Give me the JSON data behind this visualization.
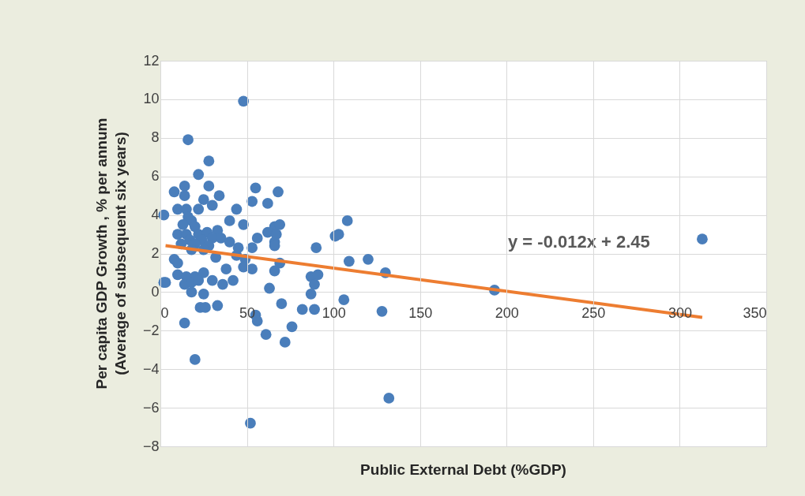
{
  "chart_data": {
    "type": "scatter",
    "xlabel": "Public External Debt (%GDP)",
    "ylabel": [
      "Per  capita GDP Growth , % per annum",
      "(Average of subsequent six years)"
    ],
    "xlim": [
      0,
      350
    ],
    "xticks": [
      0,
      50,
      100,
      150,
      200,
      250,
      300,
      350
    ],
    "ylim": [
      -8,
      12
    ],
    "yticks": [
      -8,
      -6,
      -4,
      -2,
      0,
      2,
      4,
      6,
      8,
      10,
      12
    ],
    "grid": true,
    "marker": "circle",
    "annotations": [
      "y = -0.012x + 2.45"
    ],
    "series": [
      {
        "color": "#4a7ebb",
        "x": [
          2,
          2,
          48,
          16,
          28,
          22,
          28,
          14,
          8,
          14,
          34,
          55,
          68,
          25,
          30,
          10,
          15,
          44,
          22,
          53,
          62,
          16,
          18,
          40,
          108,
          13,
          20,
          48,
          66,
          69,
          10,
          15,
          22,
          27,
          33,
          62,
          67,
          103,
          101,
          17,
          24,
          30,
          35,
          56,
          66,
          40,
          12,
          20,
          28,
          45,
          53,
          66,
          90,
          18,
          25,
          8,
          10,
          32,
          44,
          49,
          69,
          109,
          120,
          10,
          15,
          20,
          25,
          38,
          48,
          53,
          66,
          87,
          91,
          130,
          3,
          14,
          18,
          22,
          30,
          36,
          42,
          63,
          89,
          193,
          313,
          18,
          25,
          87,
          106,
          70,
          23,
          26,
          33,
          82,
          89,
          128,
          55,
          56,
          14,
          76,
          61,
          72,
          20,
          132,
          52
        ],
        "values": [
          4.0,
          0.5,
          9.9,
          7.9,
          6.8,
          6.1,
          5.5,
          5.5,
          5.2,
          5.0,
          5.0,
          5.4,
          5.2,
          4.8,
          4.5,
          4.3,
          4.3,
          4.3,
          4.3,
          4.7,
          4.6,
          3.9,
          3.7,
          3.7,
          3.7,
          3.5,
          3.4,
          3.5,
          3.4,
          3.5,
          3.0,
          3.0,
          3.0,
          3.1,
          3.2,
          3.1,
          3.0,
          3.0,
          2.9,
          2.7,
          2.7,
          2.8,
          2.8,
          2.8,
          2.6,
          2.6,
          2.5,
          2.5,
          2.4,
          2.3,
          2.3,
          2.4,
          2.3,
          2.2,
          2.2,
          1.7,
          1.5,
          1.8,
          1.9,
          1.7,
          1.5,
          1.6,
          1.7,
          0.9,
          0.8,
          0.8,
          1.0,
          1.2,
          1.3,
          1.2,
          1.1,
          0.8,
          0.9,
          1.0,
          0.5,
          0.4,
          0.5,
          0.6,
          0.6,
          0.4,
          0.6,
          0.2,
          0.4,
          0.1,
          2.75,
          0.0,
          -0.1,
          -0.1,
          -0.4,
          -0.6,
          -0.8,
          -0.8,
          -0.7,
          -0.9,
          -0.9,
          -1.0,
          -1.2,
          -1.5,
          -1.6,
          -1.8,
          -2.2,
          -2.6,
          -3.5,
          -5.5,
          -6.8
        ]
      },
      {
        "type": "line",
        "marker": "none",
        "color": "#ed7d31",
        "x": [
          3,
          313
        ],
        "values": [
          2.41,
          -1.31
        ]
      }
    ]
  }
}
